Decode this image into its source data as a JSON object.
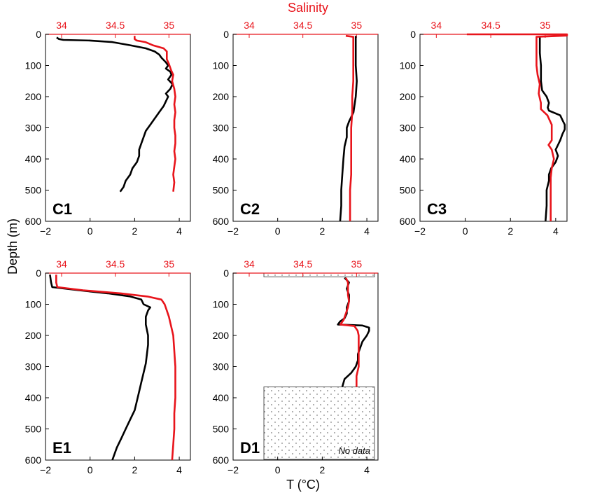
{
  "colors": {
    "temperature": "#000000",
    "salinity": "#e8141b"
  },
  "chart_data": {
    "type": "line",
    "top_axis_title": "Salinity",
    "bottom_axis_title": "T (°C)",
    "y_axis_title": "Depth (m)",
    "y_range": [
      0,
      600
    ],
    "y_ticks": [
      0,
      100,
      200,
      300,
      400,
      500,
      600
    ],
    "y_reversed": true,
    "t_range": [
      -2,
      4.5
    ],
    "t_ticks": [
      "−2",
      "0",
      "2",
      "4"
    ],
    "s_range": [
      33.85,
      35.2
    ],
    "s_ticks": [
      "34",
      "34.5",
      "35"
    ],
    "panels": [
      {
        "label": "C1",
        "temperature": [
          [
            -1.5,
            10
          ],
          [
            -1.4,
            15
          ],
          [
            -1.2,
            18
          ],
          [
            0,
            20
          ],
          [
            1,
            25
          ],
          [
            1.8,
            35
          ],
          [
            2.5,
            45
          ],
          [
            2.9,
            55
          ],
          [
            3.1,
            65
          ],
          [
            3.2,
            75
          ],
          [
            3.4,
            90
          ],
          [
            3.5,
            100
          ],
          [
            3.4,
            110
          ],
          [
            3.6,
            120
          ],
          [
            3.65,
            130
          ],
          [
            3.5,
            145
          ],
          [
            3.7,
            160
          ],
          [
            3.6,
            175
          ],
          [
            3.4,
            190
          ],
          [
            3.5,
            200
          ],
          [
            3.4,
            215
          ],
          [
            3.3,
            230
          ],
          [
            3.1,
            250
          ],
          [
            2.9,
            270
          ],
          [
            2.7,
            290
          ],
          [
            2.5,
            310
          ],
          [
            2.4,
            330
          ],
          [
            2.3,
            350
          ],
          [
            2.2,
            370
          ],
          [
            2.2,
            390
          ],
          [
            2.1,
            410
          ],
          [
            1.9,
            430
          ],
          [
            1.8,
            450
          ],
          [
            1.6,
            470
          ],
          [
            1.5,
            490
          ],
          [
            1.35,
            505
          ]
        ],
        "salinity": [
          [
            34.68,
            5
          ],
          [
            34.68,
            15
          ],
          [
            34.7,
            20
          ],
          [
            34.78,
            25
          ],
          [
            34.85,
            35
          ],
          [
            34.95,
            45
          ],
          [
            34.98,
            55
          ],
          [
            34.98,
            65
          ],
          [
            34.98,
            80
          ],
          [
            35.0,
            95
          ],
          [
            35.02,
            115
          ],
          [
            35.04,
            130
          ],
          [
            35.03,
            150
          ],
          [
            35.05,
            175
          ],
          [
            35.06,
            200
          ],
          [
            35.05,
            225
          ],
          [
            35.06,
            250
          ],
          [
            35.05,
            275
          ],
          [
            35.05,
            300
          ],
          [
            35.06,
            325
          ],
          [
            35.06,
            350
          ],
          [
            35.05,
            375
          ],
          [
            35.06,
            400
          ],
          [
            35.05,
            425
          ],
          [
            35.04,
            450
          ],
          [
            35.05,
            475
          ],
          [
            35.04,
            505
          ]
        ]
      },
      {
        "label": "C2",
        "temperature": [
          [
            3.5,
            5
          ],
          [
            3.5,
            50
          ],
          [
            3.5,
            100
          ],
          [
            3.55,
            150
          ],
          [
            3.5,
            200
          ],
          [
            3.4,
            250
          ],
          [
            3.2,
            280
          ],
          [
            3.1,
            300
          ],
          [
            3.1,
            330
          ],
          [
            3.0,
            360
          ],
          [
            2.95,
            400
          ],
          [
            2.9,
            450
          ],
          [
            2.85,
            500
          ],
          [
            2.85,
            550
          ],
          [
            2.8,
            600
          ]
        ],
        "salinity": [
          [
            34.9,
            5
          ],
          [
            34.97,
            8
          ],
          [
            34.97,
            50
          ],
          [
            34.97,
            100
          ],
          [
            34.97,
            150
          ],
          [
            34.96,
            200
          ],
          [
            34.96,
            250
          ],
          [
            34.95,
            300
          ],
          [
            34.95,
            350
          ],
          [
            34.95,
            400
          ],
          [
            34.95,
            450
          ],
          [
            34.94,
            500
          ],
          [
            34.94,
            550
          ],
          [
            34.94,
            600
          ]
        ]
      },
      {
        "label": "C3",
        "temperature": [
          [
            3.3,
            5
          ],
          [
            3.3,
            30
          ],
          [
            3.3,
            60
          ],
          [
            3.35,
            100
          ],
          [
            3.35,
            150
          ],
          [
            3.4,
            180
          ],
          [
            3.6,
            200
          ],
          [
            3.7,
            220
          ],
          [
            3.65,
            235
          ],
          [
            3.7,
            245
          ],
          [
            4.2,
            260
          ],
          [
            4.3,
            275
          ],
          [
            4.4,
            290
          ],
          [
            4.4,
            305
          ],
          [
            4.3,
            320
          ],
          [
            4.2,
            340
          ],
          [
            4.1,
            355
          ],
          [
            4.0,
            370
          ],
          [
            4.1,
            390
          ],
          [
            4.0,
            410
          ],
          [
            3.8,
            430
          ],
          [
            3.7,
            450
          ],
          [
            3.7,
            470
          ],
          [
            3.6,
            500
          ],
          [
            3.6,
            550
          ],
          [
            3.55,
            600
          ]
        ],
        "salinity": [
          [
            34.28,
            0
          ],
          [
            35.2,
            0
          ],
          [
            35.2,
            4
          ],
          [
            34.92,
            8
          ],
          [
            34.92,
            50
          ],
          [
            34.92,
            100
          ],
          [
            34.93,
            130
          ],
          [
            34.95,
            160
          ],
          [
            34.94,
            190
          ],
          [
            34.96,
            220
          ],
          [
            34.96,
            240
          ],
          [
            35.02,
            260
          ],
          [
            35.04,
            275
          ],
          [
            35.06,
            290
          ],
          [
            35.06,
            320
          ],
          [
            35.06,
            340
          ],
          [
            35.03,
            355
          ],
          [
            35.06,
            370
          ],
          [
            35.08,
            400
          ],
          [
            35.06,
            430
          ],
          [
            35.05,
            460
          ],
          [
            35.05,
            500
          ],
          [
            35.05,
            550
          ],
          [
            35.05,
            600
          ]
        ]
      },
      {
        "label": "E1",
        "temperature": [
          [
            -1.8,
            5
          ],
          [
            -1.75,
            30
          ],
          [
            -1.7,
            45
          ],
          [
            -0.5,
            55
          ],
          [
            0.8,
            65
          ],
          [
            1.8,
            75
          ],
          [
            2.3,
            85
          ],
          [
            2.4,
            100
          ],
          [
            2.7,
            110
          ],
          [
            2.6,
            120
          ],
          [
            2.5,
            140
          ],
          [
            2.5,
            165
          ],
          [
            2.6,
            200
          ],
          [
            2.6,
            230
          ],
          [
            2.55,
            260
          ],
          [
            2.5,
            290
          ],
          [
            2.4,
            320
          ],
          [
            2.3,
            350
          ],
          [
            2.2,
            380
          ],
          [
            2.1,
            410
          ],
          [
            2.0,
            440
          ],
          [
            1.8,
            470
          ],
          [
            1.6,
            500
          ],
          [
            1.4,
            530
          ],
          [
            1.2,
            560
          ],
          [
            1.05,
            590
          ],
          [
            1.0,
            600
          ]
        ],
        "salinity": [
          [
            33.95,
            5
          ],
          [
            33.95,
            30
          ],
          [
            33.96,
            45
          ],
          [
            34.2,
            55
          ],
          [
            34.55,
            65
          ],
          [
            34.8,
            75
          ],
          [
            34.93,
            85
          ],
          [
            34.96,
            100
          ],
          [
            34.98,
            120
          ],
          [
            35.0,
            140
          ],
          [
            35.02,
            170
          ],
          [
            35.04,
            200
          ],
          [
            35.05,
            250
          ],
          [
            35.06,
            300
          ],
          [
            35.06,
            350
          ],
          [
            35.06,
            400
          ],
          [
            35.05,
            450
          ],
          [
            35.05,
            500
          ],
          [
            35.04,
            550
          ],
          [
            35.03,
            600
          ]
        ]
      },
      {
        "label": "D1",
        "no_data_label": "No data",
        "temperature": [
          [
            3.0,
            15
          ],
          [
            3.2,
            30
          ],
          [
            3.1,
            50
          ],
          [
            3.2,
            70
          ],
          [
            3.2,
            90
          ],
          [
            3.1,
            110
          ],
          [
            3.1,
            130
          ],
          [
            3.0,
            145
          ],
          [
            2.8,
            155
          ],
          [
            2.7,
            165
          ],
          [
            3.8,
            168
          ],
          [
            4.1,
            175
          ],
          [
            4.1,
            185
          ],
          [
            4.0,
            200
          ],
          [
            3.8,
            220
          ],
          [
            3.7,
            240
          ],
          [
            3.6,
            260
          ],
          [
            3.6,
            280
          ],
          [
            3.5,
            300
          ],
          [
            3.3,
            320
          ],
          [
            3.0,
            340
          ],
          [
            2.9,
            365
          ]
        ],
        "salinity": [
          [
            34.9,
            15
          ],
          [
            34.92,
            30
          ],
          [
            34.92,
            50
          ],
          [
            34.92,
            70
          ],
          [
            34.93,
            90
          ],
          [
            34.92,
            110
          ],
          [
            34.9,
            130
          ],
          [
            34.88,
            150
          ],
          [
            34.85,
            165
          ],
          [
            34.98,
            170
          ],
          [
            35.01,
            185
          ],
          [
            35.02,
            200
          ],
          [
            35.02,
            250
          ],
          [
            35.02,
            300
          ],
          [
            35.0,
            330
          ],
          [
            35.0,
            365
          ]
        ]
      }
    ]
  }
}
